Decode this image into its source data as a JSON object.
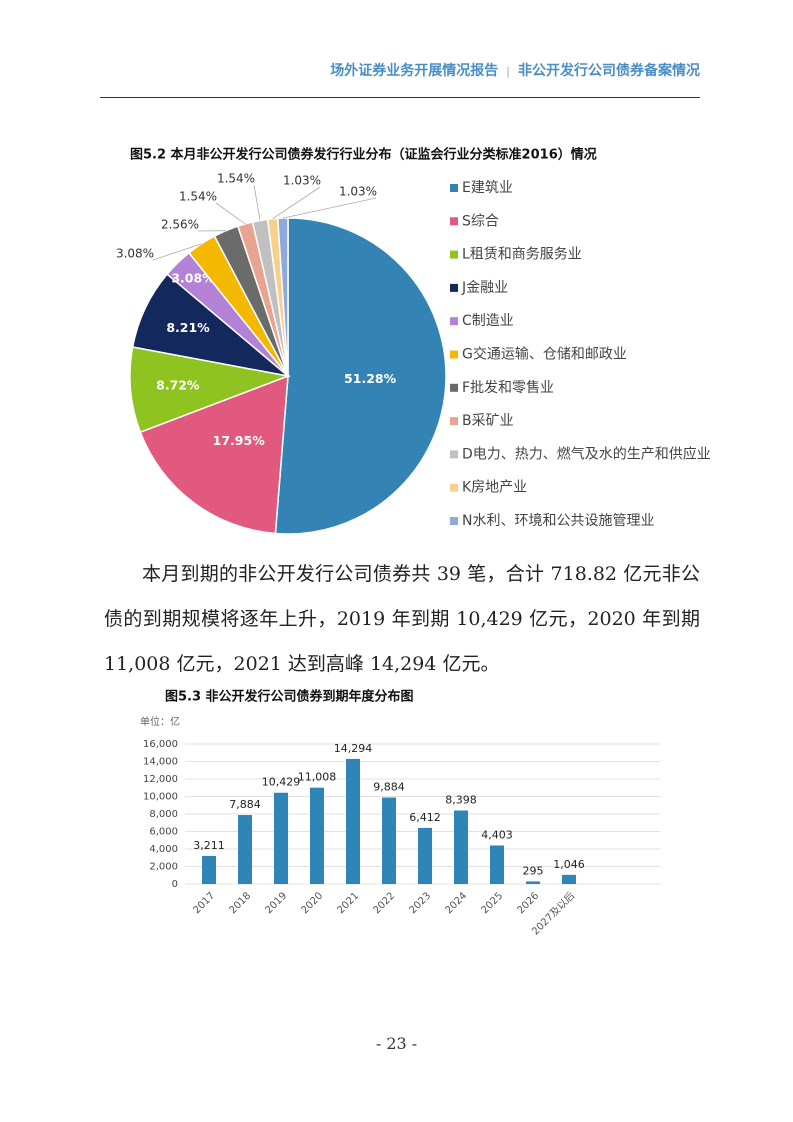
{
  "header": {
    "left": "场外证券业务开展情况报告",
    "right": "非公开发行公司债券备案情况"
  },
  "chart_data": [
    {
      "type": "pie",
      "title": "图5.2 本月非公开发行公司债券发行行业分布（证监会行业分类标准2016）情况",
      "categories": [
        "E建筑业",
        "S综合",
        "L租赁和商务服务业",
        "J金融业",
        "C制造业",
        "G交通运输、仓储和邮政业",
        "F批发和零售业",
        "B采矿业",
        "D电力、热力、燃气及水的生产和供应业",
        "K房地产业",
        "N水利、环境和公共设施管理业"
      ],
      "values": [
        51.28,
        17.95,
        8.72,
        8.21,
        3.08,
        3.08,
        2.56,
        1.54,
        1.54,
        1.03,
        1.03
      ],
      "value_labels": [
        "51.28%",
        "17.95%",
        "8.72%",
        "8.21%",
        "3.08%",
        "3.08%",
        "2.56%",
        "1.54%",
        "1.54%",
        "1.03%",
        "1.03%"
      ],
      "colors": [
        "#3384b4",
        "#e2597f",
        "#8fc31f",
        "#13285c",
        "#b382d6",
        "#f5b800",
        "#6b6b6b",
        "#e9a391",
        "#c0c0c0",
        "#f8d08c",
        "#8eaadb"
      ]
    },
    {
      "type": "bar",
      "title": "图5.3 非公开发行公司债券到期年度分布图",
      "unit": "单位：亿",
      "categories": [
        "2017",
        "2018",
        "2019",
        "2020",
        "2021",
        "2022",
        "2023",
        "2024",
        "2025",
        "2026",
        "2027及以后"
      ],
      "values": [
        3211,
        7884,
        10429,
        11008,
        14294,
        9884,
        6412,
        8398,
        4403,
        295,
        1046
      ],
      "value_labels": [
        "3,211",
        "7,884",
        "10,429",
        "11,008",
        "14,294",
        "9,884",
        "6,412",
        "8,398",
        "4,403",
        "295",
        "1,046"
      ],
      "color": "#2f86b6",
      "ylim": [
        0,
        16000
      ],
      "yticks": [
        0,
        {
          "value": 2000,
          "label": "2,000"
        },
        {
          "value": 4000,
          "label": "4,000"
        },
        {
          "value": 6000,
          "label": "6,000"
        },
        {
          "value": 8000,
          "label": "8,000"
        },
        {
          "value": 10000,
          "label": "10,000"
        },
        {
          "value": 12000,
          "label": "12,000"
        },
        {
          "value": 14000,
          "label": "14,000"
        },
        {
          "value": 16000,
          "label": "16,000"
        }
      ],
      "grid": true
    }
  ],
  "paragraph": "本月到期的非公开发行公司债券共 39 笔，合计 718.82 亿元非公债的到期规模将逐年上升，2019 年到期 10,429 亿元，2020 年到期 11,008 亿元，2021 达到高峰 14,294 亿元。",
  "page_number": "- 23 -"
}
